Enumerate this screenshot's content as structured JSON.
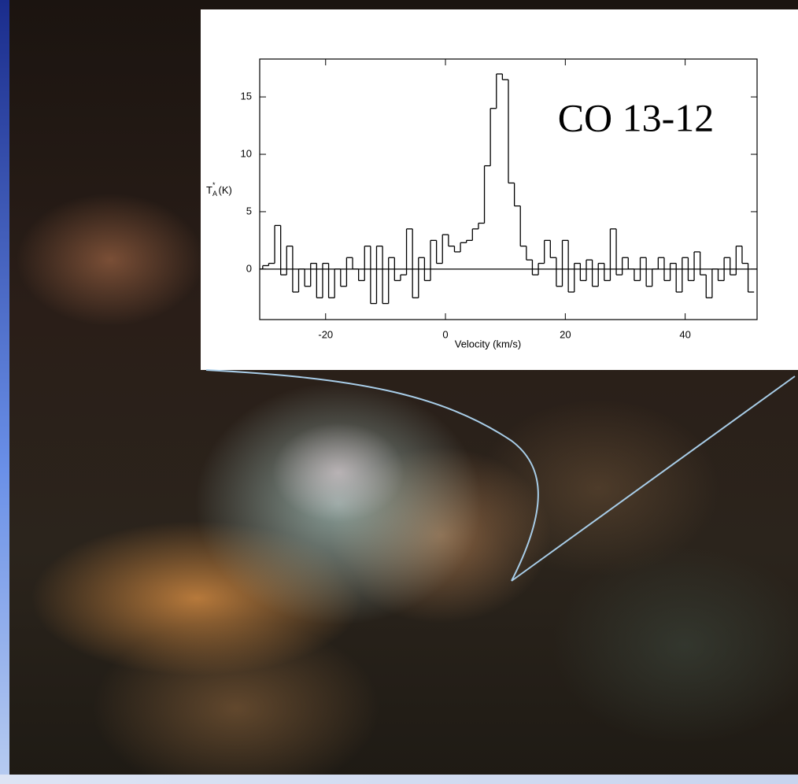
{
  "chart_data": {
    "type": "step",
    "annotation": "CO 13-12",
    "xlabel": "Velocity (km/s)",
    "ylabel": {
      "symbol": "T",
      "subscript": "A",
      "superscript": "*",
      "unit": "(K)"
    },
    "xlim": [
      -31,
      52
    ],
    "ylim": [
      -4.4,
      18.3
    ],
    "xticks": [
      -20,
      0,
      20,
      40
    ],
    "yticks": [
      0,
      5,
      10,
      15
    ],
    "color": "#000000",
    "baseline": 0,
    "x": [
      -31,
      -30,
      -29,
      -28,
      -27,
      -26,
      -25,
      -24,
      -23,
      -22,
      -21,
      -20,
      -19,
      -18,
      -17,
      -16,
      -15,
      -14,
      -13,
      -12,
      -11,
      -10,
      -9,
      -8,
      -7,
      -6,
      -5,
      -4,
      -3,
      -2,
      -1,
      0,
      1,
      2,
      3,
      4,
      5,
      6,
      7,
      8,
      9,
      10,
      11,
      12,
      13,
      14,
      15,
      16,
      17,
      18,
      19,
      20,
      21,
      22,
      23,
      24,
      25,
      26,
      27,
      28,
      29,
      30,
      31,
      32,
      33,
      34,
      35,
      36,
      37,
      38,
      39,
      40,
      41,
      42,
      43,
      44,
      45,
      46,
      47,
      48,
      49,
      50,
      51
    ],
    "values": [
      0,
      0.3,
      0.5,
      3.8,
      -0.5,
      2,
      -2,
      0,
      -1.5,
      0.5,
      -2.5,
      0.5,
      -2.5,
      0,
      -1.5,
      1,
      0,
      -1,
      2,
      -3,
      2,
      -3,
      1,
      -1,
      -0.5,
      3.5,
      -2.5,
      1,
      -1,
      2.5,
      0.5,
      3,
      2,
      1.5,
      2.3,
      2.5,
      3.5,
      4,
      9,
      14,
      17,
      16.5,
      7.5,
      5.5,
      2,
      0.8,
      -0.5,
      0.5,
      2.5,
      1,
      -1.5,
      2.5,
      -2,
      0.5,
      -1,
      0.8,
      -1.5,
      0.5,
      -1,
      3.5,
      -0.5,
      1,
      0,
      -1,
      1,
      -1.5,
      0,
      1,
      -1,
      0.5,
      -2,
      1,
      -1,
      1.5,
      -0.5,
      -2.5,
      0,
      -1,
      1,
      -0.5,
      2,
      0.5,
      -2
    ]
  }
}
